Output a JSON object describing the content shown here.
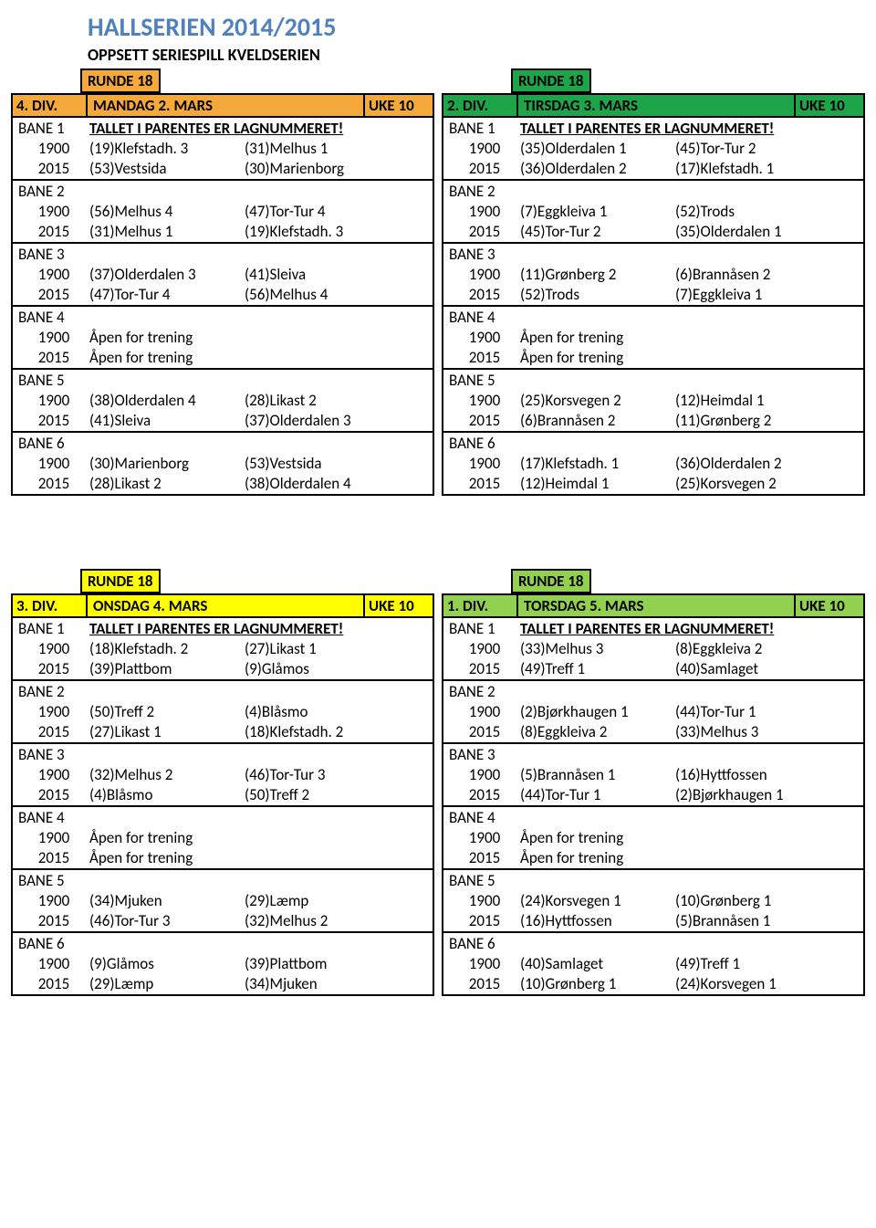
{
  "title": "HALLSERIEN 2014/2015",
  "subtitle": "OPPSETT SERIESPILL KVELDSERIEN",
  "colors": {
    "title": "#4f81bd",
    "orange": "#f4a93a",
    "green_dark": "#1ea54a",
    "yellow": "#ffff00",
    "green_light": "#92d050"
  },
  "note": "TALLET I PARENTES ER LAGNUMMERET!",
  "runde": "RUNDE 18",
  "uke": "UKE 10",
  "open_text": "Åpen for trening",
  "panels": [
    {
      "div": "4. DIV.",
      "day": "MANDAG 2. MARS",
      "header_bg": "#f4a93a",
      "runde_bg": "#f4a93a",
      "lanes": [
        {
          "name": "BANE 1",
          "note": true,
          "rows": [
            {
              "t": "1900",
              "a": "(19)Klefstadh. 3",
              "b": "(31)Melhus 1"
            },
            {
              "t": "2015",
              "a": "(53)Vestsida",
              "b": "(30)Marienborg"
            }
          ]
        },
        {
          "name": "BANE 2",
          "rows": [
            {
              "t": "1900",
              "a": "(56)Melhus 4",
              "b": "(47)Tor-Tur 4"
            },
            {
              "t": "2015",
              "a": "(31)Melhus 1",
              "b": "(19)Klefstadh. 3"
            }
          ]
        },
        {
          "name": "BANE 3",
          "rows": [
            {
              "t": "1900",
              "a": "(37)Olderdalen 3",
              "b": "(41)Sleiva"
            },
            {
              "t": "2015",
              "a": "(47)Tor-Tur 4",
              "b": "(56)Melhus 4"
            }
          ]
        },
        {
          "name": "BANE 4",
          "rows": [
            {
              "t": "1900",
              "a": "Åpen for trening",
              "b": ""
            },
            {
              "t": "2015",
              "a": "Åpen for trening",
              "b": ""
            }
          ]
        },
        {
          "name": "BANE 5",
          "rows": [
            {
              "t": "1900",
              "a": "(38)Olderdalen 4",
              "b": "(28)Likast 2"
            },
            {
              "t": "2015",
              "a": "(41)Sleiva",
              "b": "(37)Olderdalen 3"
            }
          ]
        },
        {
          "name": "BANE 6",
          "rows": [
            {
              "t": "1900",
              "a": "(30)Marienborg",
              "b": "(53)Vestsida"
            },
            {
              "t": "2015",
              "a": "(28)Likast 2",
              "b": "(38)Olderdalen 4"
            }
          ]
        }
      ]
    },
    {
      "div": "2. DIV.",
      "day": "TIRSDAG 3. MARS",
      "header_bg": "#1ea54a",
      "runde_bg": "#1ea54a",
      "lanes": [
        {
          "name": "BANE 1",
          "note": true,
          "rows": [
            {
              "t": "1900",
              "a": "(35)Olderdalen 1",
              "b": "(45)Tor-Tur 2"
            },
            {
              "t": "2015",
              "a": "(36)Olderdalen 2",
              "b": "(17)Klefstadh. 1"
            }
          ]
        },
        {
          "name": "BANE 2",
          "rows": [
            {
              "t": "1900",
              "a": "(7)Eggkleiva 1",
              "b": "(52)Trods"
            },
            {
              "t": "2015",
              "a": "(45)Tor-Tur 2",
              "b": "(35)Olderdalen 1"
            }
          ]
        },
        {
          "name": "BANE 3",
          "rows": [
            {
              "t": "1900",
              "a": "(11)Grønberg 2",
              "b": "(6)Brannåsen 2"
            },
            {
              "t": "2015",
              "a": "(52)Trods",
              "b": "(7)Eggkleiva 1"
            }
          ]
        },
        {
          "name": "BANE 4",
          "rows": [
            {
              "t": "1900",
              "a": "Åpen for trening",
              "b": ""
            },
            {
              "t": "2015",
              "a": "Åpen for trening",
              "b": ""
            }
          ]
        },
        {
          "name": "BANE 5",
          "rows": [
            {
              "t": "1900",
              "a": "(25)Korsvegen 2",
              "b": "(12)Heimdal 1"
            },
            {
              "t": "2015",
              "a": "(6)Brannåsen 2",
              "b": "(11)Grønberg 2"
            }
          ]
        },
        {
          "name": "BANE 6",
          "rows": [
            {
              "t": "1900",
              "a": "(17)Klefstadh. 1",
              "b": "(36)Olderdalen 2"
            },
            {
              "t": "2015",
              "a": "(12)Heimdal 1",
              "b": "(25)Korsvegen 2"
            }
          ]
        }
      ]
    },
    {
      "div": "3. DIV.",
      "day": "ONSDAG 4. MARS",
      "header_bg": "#ffff00",
      "runde_bg": "#ffff00",
      "lanes": [
        {
          "name": "BANE 1",
          "note": true,
          "rows": [
            {
              "t": "1900",
              "a": "(18)Klefstadh. 2",
              "b": "(27)Likast 1"
            },
            {
              "t": "2015",
              "a": "(39)Plattbom",
              "b": "(9)Glåmos"
            }
          ]
        },
        {
          "name": "BANE 2",
          "rows": [
            {
              "t": "1900",
              "a": "(50)Treff 2",
              "b": "(4)Blåsmo"
            },
            {
              "t": "2015",
              "a": "(27)Likast 1",
              "b": "(18)Klefstadh. 2"
            }
          ]
        },
        {
          "name": "BANE 3",
          "rows": [
            {
              "t": "1900",
              "a": "(32)Melhus 2",
              "b": "(46)Tor-Tur 3"
            },
            {
              "t": "2015",
              "a": "(4)Blåsmo",
              "b": "(50)Treff 2"
            }
          ]
        },
        {
          "name": "BANE 4",
          "rows": [
            {
              "t": "1900",
              "a": "Åpen for trening",
              "b": ""
            },
            {
              "t": "2015",
              "a": "Åpen for trening",
              "b": ""
            }
          ]
        },
        {
          "name": "BANE 5",
          "rows": [
            {
              "t": "1900",
              "a": "(34)Mjuken",
              "b": "(29)Læmp"
            },
            {
              "t": "2015",
              "a": "(46)Tor-Tur 3",
              "b": "(32)Melhus 2"
            }
          ]
        },
        {
          "name": "BANE 6",
          "rows": [
            {
              "t": "1900",
              "a": "(9)Glåmos",
              "b": "(39)Plattbom"
            },
            {
              "t": "2015",
              "a": "(29)Læmp",
              "b": "(34)Mjuken"
            }
          ]
        }
      ]
    },
    {
      "div": "1. DIV.",
      "day": "TORSDAG 5. MARS",
      "header_bg": "#92d050",
      "runde_bg": "#92d050",
      "lanes": [
        {
          "name": "BANE 1",
          "note": true,
          "rows": [
            {
              "t": "1900",
              "a": "(33)Melhus 3",
              "b": "(8)Eggkleiva 2"
            },
            {
              "t": "2015",
              "a": "(49)Treff 1",
              "b": "(40)Samlaget"
            }
          ]
        },
        {
          "name": "BANE 2",
          "rows": [
            {
              "t": "1900",
              "a": "(2)Bjørkhaugen 1",
              "b": "(44)Tor-Tur 1"
            },
            {
              "t": "2015",
              "a": "(8)Eggkleiva 2",
              "b": "(33)Melhus 3"
            }
          ]
        },
        {
          "name": "BANE 3",
          "rows": [
            {
              "t": "1900",
              "a": "(5)Brannåsen 1",
              "b": "(16)Hyttfossen"
            },
            {
              "t": "2015",
              "a": "(44)Tor-Tur 1",
              "b": "(2)Bjørkhaugen 1"
            }
          ]
        },
        {
          "name": "BANE 4",
          "rows": [
            {
              "t": "1900",
              "a": "Åpen for trening",
              "b": ""
            },
            {
              "t": "2015",
              "a": "Åpen for trening",
              "b": ""
            }
          ]
        },
        {
          "name": "BANE 5",
          "rows": [
            {
              "t": "1900",
              "a": "(24)Korsvegen 1",
              "b": "(10)Grønberg 1"
            },
            {
              "t": "2015",
              "a": "(16)Hyttfossen",
              "b": "(5)Brannåsen 1"
            }
          ]
        },
        {
          "name": "BANE 6",
          "rows": [
            {
              "t": "1900",
              "a": "(40)Samlaget",
              "b": "(49)Treff 1"
            },
            {
              "t": "2015",
              "a": "(10)Grønberg 1",
              "b": "(24)Korsvegen 1"
            }
          ]
        }
      ]
    }
  ]
}
